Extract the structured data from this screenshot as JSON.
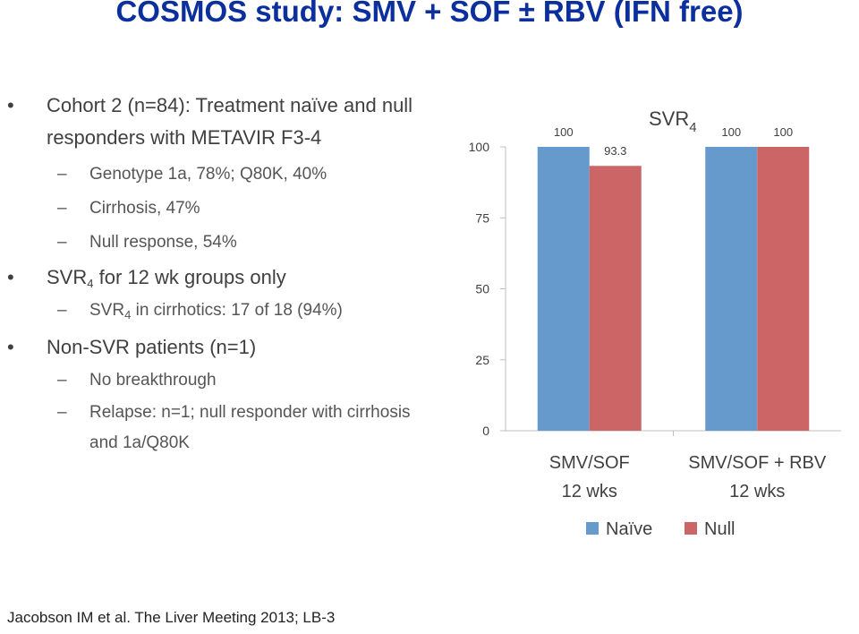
{
  "slide_title": "COSMOS study: SMV + SOF ± RBV (IFN free)",
  "bullets": {
    "cohort": "Cohort 2 (n=84):  Treatment naïve and null responders with METAVIR F3-4",
    "genotype": "Genotype 1a, 78%; Q80K, 40%",
    "cirrhosis": "Cirrhosis, 47%",
    "null_response": "Null response, 54%",
    "svr_prefix": "SVR",
    "svr_sub": "4",
    "svr_suffix": " for 12 wk groups only",
    "svr_cirr_prefix": "SVR",
    "svr_cirr_sub": "4",
    "svr_cirr_suffix": " in cirrhotics:  17 of 18 (94%)",
    "non_svr": "Non-SVR patients (n=1)",
    "no_breakthrough": "No breakthrough",
    "relapse": "Relapse: n=1; null responder with cirrhosis and 1a/Q80K"
  },
  "footer": "Jacobson IM et al.  The Liver Meeting 2013; LB-3",
  "chart_data": {
    "type": "bar",
    "title_main": "SVR",
    "title_sub": "4",
    "categories": [
      [
        "SMV/SOF",
        "12 wks"
      ],
      [
        "SMV/SOF + RBV",
        "12 wks"
      ]
    ],
    "series": [
      {
        "name": "Naïve",
        "values": [
          100,
          100
        ],
        "labels": [
          "100",
          "100"
        ],
        "color": "#6699cc"
      },
      {
        "name": "Null",
        "values": [
          93.3,
          100
        ],
        "labels": [
          "93.3",
          "100"
        ],
        "color": "#cc6666"
      }
    ],
    "yticks": [
      0,
      25,
      50,
      75,
      100
    ],
    "ylim": [
      0,
      100
    ]
  },
  "bullet_glyph": "•",
  "dash_glyph": "–"
}
